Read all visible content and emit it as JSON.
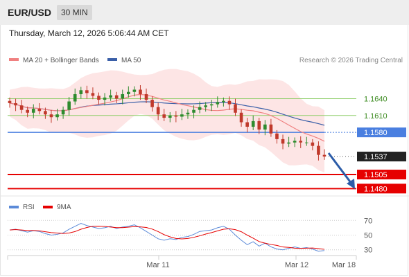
{
  "header": {
    "pair": "EUR/USD",
    "timeframe": "30 MIN"
  },
  "datetime": "Thursday, March 12, 2026 5:06:44 AM CET",
  "legend": {
    "ma20_label": "MA 20 + Bollinger Bands",
    "ma50_label": "MA 50",
    "credit": "Research © 2026 Trading Central"
  },
  "rsi_legend": {
    "rsi_label": "RSI",
    "ma_label": "9MA"
  },
  "colors": {
    "ma20": "#f08080",
    "ma50": "#3a5fa8",
    "bands": "#fde0e0",
    "up": "#2e8b2e",
    "down": "#c0392b",
    "support": "#e60000",
    "resistance": "#8fce6a",
    "pivot": "#4a7fe0",
    "arrow": "#2c5ca8",
    "rsi": "#5b8ad8",
    "rsi_ma": "#e60000"
  },
  "levels": [
    {
      "label": "1.1640",
      "kind": "resistance"
    },
    {
      "label": "1.1610",
      "kind": "resistance"
    },
    {
      "label": "1.1580",
      "kind": "pivot"
    },
    {
      "label": "1.1537",
      "kind": "last"
    },
    {
      "label": "1.1505",
      "kind": "support"
    },
    {
      "label": "1.1480",
      "kind": "support"
    }
  ],
  "rsi_axis": [
    "70",
    "50",
    "30"
  ],
  "x_axis": [
    "Mar 11",
    "Mar 12",
    "Mar 18"
  ],
  "chart_data": {
    "type": "candlestick",
    "title": "EUR/USD",
    "timeframe": "30 MIN",
    "price_range": [
      1.1473,
      1.168
    ],
    "rsi_range": [
      25,
      75
    ],
    "levels": [
      1.164,
      1.161,
      1.158,
      1.1537,
      1.1505,
      1.148
    ],
    "last_price": 1.1537,
    "closes": [
      1.1632,
      1.1628,
      1.162,
      1.1615,
      1.1622,
      1.1618,
      1.1612,
      1.1607,
      1.1612,
      1.162,
      1.1635,
      1.1648,
      1.1655,
      1.165,
      1.1645,
      1.1638,
      1.1642,
      1.1646,
      1.164,
      1.1648,
      1.1652,
      1.1656,
      1.1648,
      1.1638,
      1.1625,
      1.1612,
      1.1606,
      1.161,
      1.1608,
      1.1612,
      1.1615,
      1.162,
      1.1625,
      1.1628,
      1.163,
      1.1634,
      1.1636,
      1.163,
      1.1615,
      1.1598,
      1.159,
      1.16,
      1.1585,
      1.1594,
      1.1578,
      1.1568,
      1.156,
      1.1562,
      1.1565,
      1.1562,
      1.1562,
      1.1556,
      1.154,
      1.1537
    ],
    "rsi": [
      57,
      58,
      56,
      54,
      56,
      55,
      52,
      50,
      51,
      53,
      58,
      62,
      66,
      63,
      61,
      59,
      60,
      62,
      59,
      61,
      62,
      64,
      60,
      55,
      50,
      45,
      43,
      45,
      44,
      47,
      48,
      51,
      55,
      56,
      57,
      60,
      62,
      58,
      50,
      43,
      37,
      41,
      35,
      39,
      34,
      31,
      30,
      32,
      34,
      32,
      33,
      31,
      28,
      29
    ],
    "x_labels": [
      "Mar 11",
      "Mar 12",
      "Mar 18"
    ]
  }
}
